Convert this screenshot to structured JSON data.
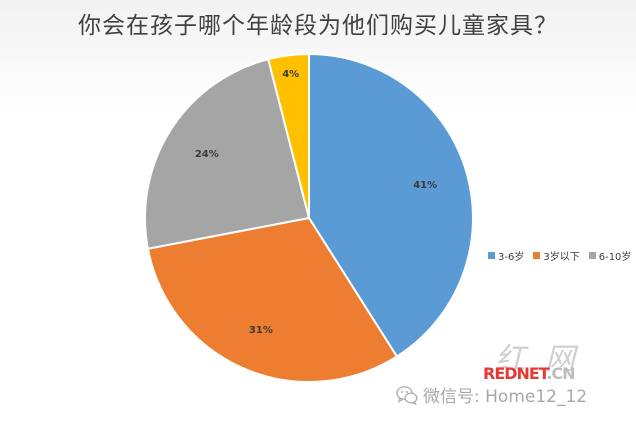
{
  "title": "你会在孩子哪个年龄段为他们购买儿童家具？",
  "chart_data": {
    "type": "pie",
    "title": "你会在孩子哪个年龄段为他们购买儿童家具？",
    "start_angle_deg": 0,
    "direction": "clockwise",
    "slices": [
      {
        "label": "3-6岁",
        "value": 41,
        "data_label": "41%",
        "color": "#5b9bd5"
      },
      {
        "label": "3岁以下",
        "value": 31,
        "data_label": "31%",
        "color": "#ed7d31"
      },
      {
        "label": "6-10岁",
        "value": 24,
        "data_label": "24%",
        "color": "#a5a5a5"
      },
      {
        "label": "",
        "value": 4,
        "data_label": "4%",
        "color": "#ffc000"
      }
    ],
    "legend": {
      "position": "right",
      "items": [
        "3-6岁",
        "3岁以下",
        "6-10岁"
      ]
    }
  },
  "watermark": {
    "logo_chars": "红网",
    "site_red": "REDNET",
    "site_grey": ".CN",
    "wechat_text": "微信号: Home12_12",
    "wechat_icon": "wechat-icon"
  }
}
